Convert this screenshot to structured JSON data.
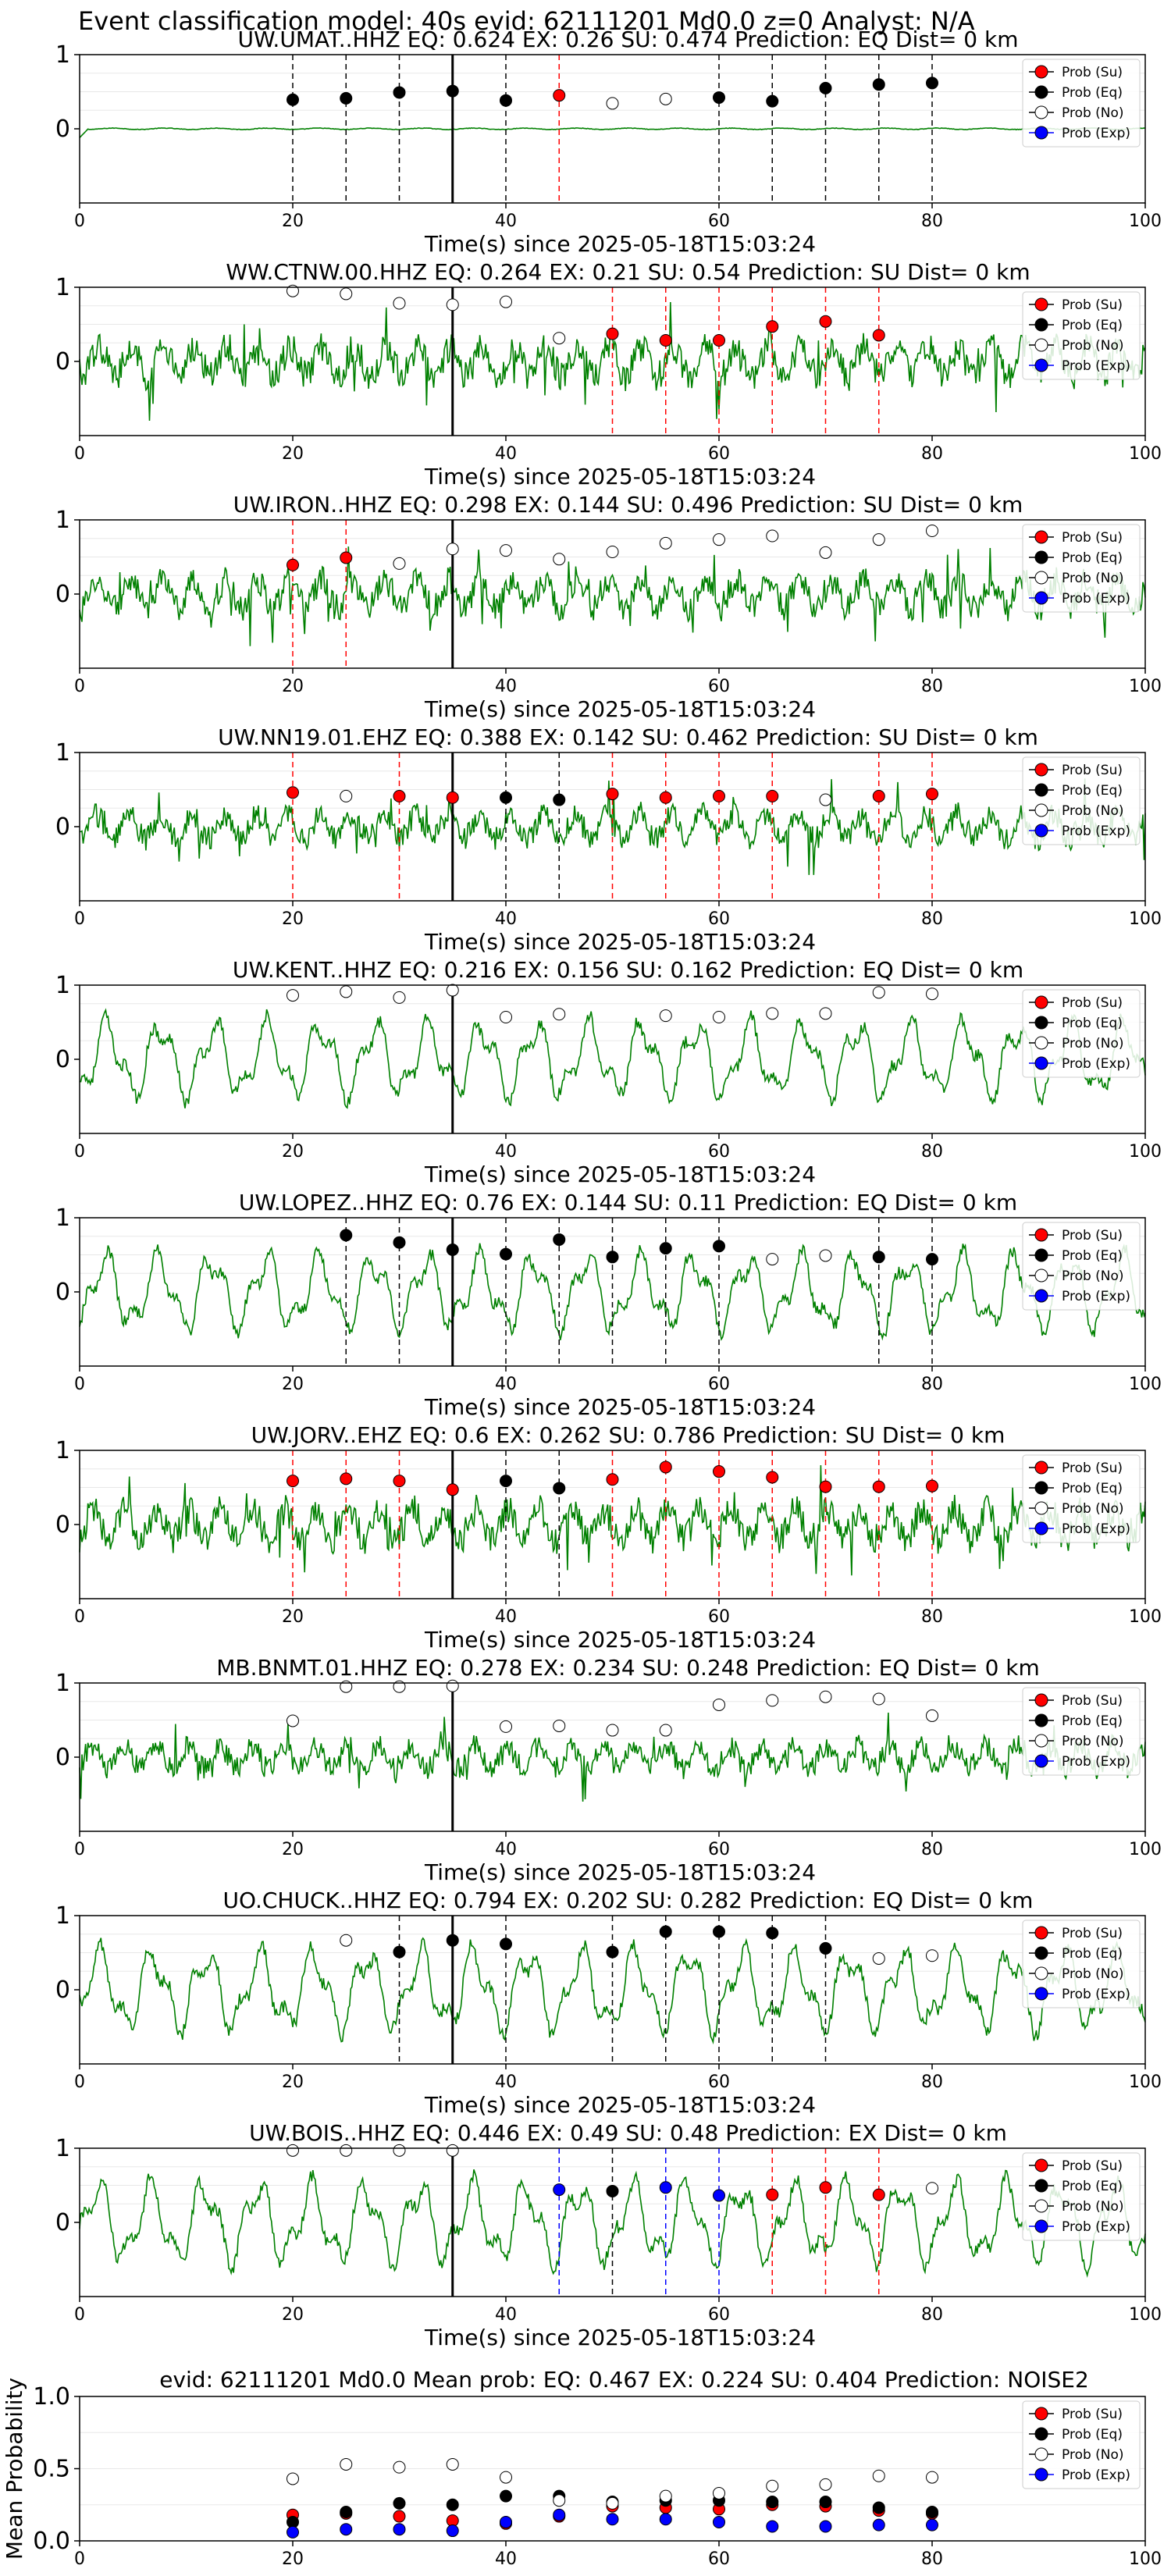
{
  "figure": {
    "suptitle": "Event classification model: 40s evid: 62111201 Md0.0 z=0 Analyst: N/A",
    "xlabel": "Time(s) since 2025-05-18T15:03:24",
    "xticks": [
      "0",
      "20",
      "40",
      "60",
      "80",
      "100"
    ],
    "yticks_trace": [
      "1",
      "0"
    ],
    "yticks_mean": [
      "1.0",
      "0.5",
      "0.0"
    ],
    "mean_ylabel": "Mean Probability",
    "legend": [
      "Prob (Su)",
      "Prob (Eq)",
      "Prob (No)",
      "Prob (Exp)"
    ],
    "colors": {
      "trace": "#008000",
      "su": "#ff0000",
      "eq": "#000000",
      "no": "#ffffff",
      "exp": "#0000ff",
      "origin_line": "#000000"
    }
  },
  "chart_data": [
    {
      "type": "line",
      "title": "UW.UMAT..HHZ   EQ: 0.624  EX: 0.26  SU: 0.474   Prediction: EQ    Dist= 0 km",
      "xlim": [
        0,
        100
      ],
      "amplitude": 0.15,
      "style": "noise",
      "origin_time": 35,
      "windows": [
        {
          "x": 20,
          "p": 0.4,
          "c": "eq",
          "line": "eq"
        },
        {
          "x": 25,
          "p": 0.42,
          "c": "eq",
          "line": "eq"
        },
        {
          "x": 30,
          "p": 0.5,
          "c": "eq",
          "line": "eq"
        },
        {
          "x": 35,
          "p": 0.52,
          "c": "eq",
          "line": null
        },
        {
          "x": 40,
          "p": 0.39,
          "c": "eq",
          "line": "eq"
        },
        {
          "x": 45,
          "p": 0.46,
          "c": "su",
          "line": "su"
        },
        {
          "x": 50,
          "p": 0.35,
          "c": "no",
          "line": null
        },
        {
          "x": 55,
          "p": 0.41,
          "c": "no",
          "line": null
        },
        {
          "x": 60,
          "p": 0.43,
          "c": "eq",
          "line": "eq"
        },
        {
          "x": 65,
          "p": 0.38,
          "c": "eq",
          "line": "eq"
        },
        {
          "x": 70,
          "p": 0.56,
          "c": "eq",
          "line": "eq"
        },
        {
          "x": 75,
          "p": 0.61,
          "c": "eq",
          "line": "eq"
        },
        {
          "x": 80,
          "p": 0.63,
          "c": "eq",
          "line": "eq"
        }
      ]
    },
    {
      "type": "line",
      "title": "WW.CTNW.00.HHZ   EQ: 0.264  EX: 0.21  SU: 0.54   Prediction: SU    Dist= 0 km",
      "xlim": [
        0,
        100
      ],
      "amplitude": 0.8,
      "style": "spiky",
      "origin_time": 35,
      "windows": [
        {
          "x": 20,
          "p": 0.97,
          "c": "no",
          "line": null
        },
        {
          "x": 25,
          "p": 0.93,
          "c": "no",
          "line": null
        },
        {
          "x": 30,
          "p": 0.8,
          "c": "no",
          "line": null
        },
        {
          "x": 35,
          "p": 0.78,
          "c": "no",
          "line": null
        },
        {
          "x": 40,
          "p": 0.82,
          "c": "no",
          "line": null
        },
        {
          "x": 45,
          "p": 0.32,
          "c": "no",
          "line": null
        },
        {
          "x": 50,
          "p": 0.38,
          "c": "su",
          "line": "su"
        },
        {
          "x": 55,
          "p": 0.29,
          "c": "su",
          "line": "su"
        },
        {
          "x": 60,
          "p": 0.29,
          "c": "su",
          "line": "su"
        },
        {
          "x": 65,
          "p": 0.48,
          "c": "su",
          "line": "su"
        },
        {
          "x": 70,
          "p": 0.55,
          "c": "su",
          "line": "su"
        },
        {
          "x": 75,
          "p": 0.36,
          "c": "su",
          "line": "su"
        }
      ]
    },
    {
      "type": "line",
      "title": "UW.IRON..HHZ   EQ: 0.298  EX: 0.144  SU: 0.496   Prediction: SU    Dist= 0 km",
      "xlim": [
        0,
        100
      ],
      "amplitude": 0.75,
      "style": "spiky",
      "origin_time": 35,
      "windows": [
        {
          "x": 20,
          "p": 0.4,
          "c": "su",
          "line": "su"
        },
        {
          "x": 25,
          "p": 0.5,
          "c": "su",
          "line": "su"
        },
        {
          "x": 30,
          "p": 0.42,
          "c": "no",
          "line": null
        },
        {
          "x": 35,
          "p": 0.62,
          "c": "no",
          "line": null
        },
        {
          "x": 40,
          "p": 0.6,
          "c": "no",
          "line": null
        },
        {
          "x": 45,
          "p": 0.48,
          "c": "no",
          "line": null
        },
        {
          "x": 50,
          "p": 0.58,
          "c": "no",
          "line": null
        },
        {
          "x": 55,
          "p": 0.7,
          "c": "no",
          "line": null
        },
        {
          "x": 60,
          "p": 0.75,
          "c": "no",
          "line": null
        },
        {
          "x": 65,
          "p": 0.8,
          "c": "no",
          "line": null
        },
        {
          "x": 70,
          "p": 0.57,
          "c": "no",
          "line": null
        },
        {
          "x": 75,
          "p": 0.75,
          "c": "no",
          "line": null
        },
        {
          "x": 80,
          "p": 0.87,
          "c": "no",
          "line": null
        }
      ]
    },
    {
      "type": "line",
      "title": "UW.NN19.01.EHZ   EQ: 0.388  EX: 0.142  SU: 0.462   Prediction: SU    Dist= 0 km",
      "xlim": [
        0,
        100
      ],
      "amplitude": 0.65,
      "style": "spiky",
      "origin_time": 35,
      "windows": [
        {
          "x": 20,
          "p": 0.47,
          "c": "su",
          "line": "su"
        },
        {
          "x": 25,
          "p": 0.42,
          "c": "no",
          "line": null
        },
        {
          "x": 30,
          "p": 0.42,
          "c": "su",
          "line": "su"
        },
        {
          "x": 35,
          "p": 0.4,
          "c": "su",
          "line": null
        },
        {
          "x": 40,
          "p": 0.4,
          "c": "eq",
          "line": "eq"
        },
        {
          "x": 45,
          "p": 0.37,
          "c": "eq",
          "line": "eq"
        },
        {
          "x": 50,
          "p": 0.45,
          "c": "su",
          "line": "su"
        },
        {
          "x": 55,
          "p": 0.4,
          "c": "su",
          "line": "su"
        },
        {
          "x": 60,
          "p": 0.42,
          "c": "su",
          "line": "su"
        },
        {
          "x": 65,
          "p": 0.42,
          "c": "su",
          "line": "su"
        },
        {
          "x": 70,
          "p": 0.37,
          "c": "no",
          "line": null
        },
        {
          "x": 75,
          "p": 0.42,
          "c": "su",
          "line": "su"
        },
        {
          "x": 80,
          "p": 0.45,
          "c": "su",
          "line": "su"
        }
      ]
    },
    {
      "type": "line",
      "title": "UW.KENT..HHZ   EQ: 0.216  EX: 0.156  SU: 0.162   Prediction: EQ    Dist= 0 km",
      "xlim": [
        0,
        100
      ],
      "amplitude": 0.75,
      "style": "smooth",
      "origin_time": 35,
      "windows": [
        {
          "x": 20,
          "p": 0.88,
          "c": "no",
          "line": null
        },
        {
          "x": 25,
          "p": 0.93,
          "c": "no",
          "line": null
        },
        {
          "x": 30,
          "p": 0.85,
          "c": "no",
          "line": null
        },
        {
          "x": 35,
          "p": 0.95,
          "c": "no",
          "line": null
        },
        {
          "x": 40,
          "p": 0.58,
          "c": "no",
          "line": null
        },
        {
          "x": 45,
          "p": 0.62,
          "c": "no",
          "line": null
        },
        {
          "x": 55,
          "p": 0.6,
          "c": "no",
          "line": null
        },
        {
          "x": 60,
          "p": 0.58,
          "c": "no",
          "line": null
        },
        {
          "x": 65,
          "p": 0.63,
          "c": "no",
          "line": null
        },
        {
          "x": 70,
          "p": 0.63,
          "c": "no",
          "line": null
        },
        {
          "x": 75,
          "p": 0.92,
          "c": "no",
          "line": null
        },
        {
          "x": 80,
          "p": 0.9,
          "c": "no",
          "line": null
        }
      ]
    },
    {
      "type": "line",
      "title": "UW.LOPEZ..HHZ   EQ: 0.76  EX: 0.144  SU: 0.11   Prediction: EQ    Dist= 0 km",
      "xlim": [
        0,
        100
      ],
      "amplitude": 0.75,
      "style": "smooth",
      "origin_time": 35,
      "windows": [
        {
          "x": 25,
          "p": 0.78,
          "c": "eq",
          "line": "eq"
        },
        {
          "x": 30,
          "p": 0.68,
          "c": "eq",
          "line": "eq"
        },
        {
          "x": 35,
          "p": 0.58,
          "c": "eq",
          "line": null
        },
        {
          "x": 40,
          "p": 0.52,
          "c": "eq",
          "line": "eq"
        },
        {
          "x": 45,
          "p": 0.72,
          "c": "eq",
          "line": "eq"
        },
        {
          "x": 50,
          "p": 0.48,
          "c": "eq",
          "line": "eq"
        },
        {
          "x": 55,
          "p": 0.6,
          "c": "eq",
          "line": "eq"
        },
        {
          "x": 60,
          "p": 0.63,
          "c": "eq",
          "line": "eq"
        },
        {
          "x": 65,
          "p": 0.45,
          "c": "no",
          "line": null
        },
        {
          "x": 70,
          "p": 0.5,
          "c": "no",
          "line": null
        },
        {
          "x": 75,
          "p": 0.48,
          "c": "eq",
          "line": "eq"
        },
        {
          "x": 80,
          "p": 0.45,
          "c": "eq",
          "line": "eq"
        }
      ]
    },
    {
      "type": "line",
      "title": "UW.JORV..EHZ   EQ: 0.6  EX: 0.262  SU: 0.786   Prediction: SU    Dist= 0 km",
      "xlim": [
        0,
        100
      ],
      "amplitude": 0.8,
      "style": "spiky",
      "origin_time": 35,
      "windows": [
        {
          "x": 20,
          "p": 0.6,
          "c": "su",
          "line": "su"
        },
        {
          "x": 25,
          "p": 0.63,
          "c": "su",
          "line": "su"
        },
        {
          "x": 30,
          "p": 0.6,
          "c": "su",
          "line": "su"
        },
        {
          "x": 35,
          "p": 0.48,
          "c": "su",
          "line": null
        },
        {
          "x": 40,
          "p": 0.6,
          "c": "eq",
          "line": "eq"
        },
        {
          "x": 45,
          "p": 0.5,
          "c": "eq",
          "line": "eq"
        },
        {
          "x": 50,
          "p": 0.62,
          "c": "su",
          "line": "su"
        },
        {
          "x": 55,
          "p": 0.79,
          "c": "su",
          "line": "su"
        },
        {
          "x": 60,
          "p": 0.73,
          "c": "su",
          "line": "su"
        },
        {
          "x": 65,
          "p": 0.65,
          "c": "su",
          "line": "su"
        },
        {
          "x": 70,
          "p": 0.52,
          "c": "su",
          "line": "su"
        },
        {
          "x": 75,
          "p": 0.52,
          "c": "su",
          "line": "su"
        },
        {
          "x": 80,
          "p": 0.53,
          "c": "su",
          "line": "su"
        }
      ]
    },
    {
      "type": "line",
      "title": "MB.BNMT.01.HHZ   EQ: 0.278  EX: 0.234  SU: 0.248   Prediction: EQ    Dist= 0 km",
      "xlim": [
        0,
        100
      ],
      "amplitude": 0.6,
      "style": "spiky",
      "origin_time": 35,
      "windows": [
        {
          "x": 20,
          "p": 0.5,
          "c": "no",
          "line": null
        },
        {
          "x": 25,
          "p": 0.97,
          "c": "no",
          "line": null
        },
        {
          "x": 30,
          "p": 0.97,
          "c": "no",
          "line": null
        },
        {
          "x": 35,
          "p": 0.98,
          "c": "no",
          "line": null
        },
        {
          "x": 40,
          "p": 0.42,
          "c": "no",
          "line": null
        },
        {
          "x": 45,
          "p": 0.43,
          "c": "no",
          "line": null
        },
        {
          "x": 50,
          "p": 0.37,
          "c": "no",
          "line": null
        },
        {
          "x": 55,
          "p": 0.37,
          "c": "no",
          "line": null
        },
        {
          "x": 60,
          "p": 0.72,
          "c": "no",
          "line": null
        },
        {
          "x": 65,
          "p": 0.78,
          "c": "no",
          "line": null
        },
        {
          "x": 70,
          "p": 0.83,
          "c": "no",
          "line": null
        },
        {
          "x": 75,
          "p": 0.8,
          "c": "no",
          "line": null
        },
        {
          "x": 80,
          "p": 0.57,
          "c": "no",
          "line": null
        }
      ]
    },
    {
      "type": "line",
      "title": "UO.CHUCK..HHZ   EQ: 0.794  EX: 0.202  SU: 0.282   Prediction: EQ    Dist= 0 km",
      "xlim": [
        0,
        100
      ],
      "amplitude": 0.8,
      "style": "smooth",
      "origin_time": 35,
      "windows": [
        {
          "x": 25,
          "p": 0.68,
          "c": "no",
          "line": null
        },
        {
          "x": 30,
          "p": 0.52,
          "c": "eq",
          "line": "eq"
        },
        {
          "x": 35,
          "p": 0.68,
          "c": "eq",
          "line": null
        },
        {
          "x": 40,
          "p": 0.63,
          "c": "eq",
          "line": "eq"
        },
        {
          "x": 50,
          "p": 0.52,
          "c": "eq",
          "line": "eq"
        },
        {
          "x": 55,
          "p": 0.8,
          "c": "eq",
          "line": "eq"
        },
        {
          "x": 60,
          "p": 0.8,
          "c": "eq",
          "line": "eq"
        },
        {
          "x": 65,
          "p": 0.78,
          "c": "eq",
          "line": "eq"
        },
        {
          "x": 70,
          "p": 0.57,
          "c": "eq",
          "line": "eq"
        },
        {
          "x": 75,
          "p": 0.43,
          "c": "no",
          "line": null
        },
        {
          "x": 80,
          "p": 0.47,
          "c": "no",
          "line": null
        }
      ]
    },
    {
      "type": "line",
      "title": "UW.BOIS..HHZ   EQ: 0.446  EX: 0.49  SU: 0.48   Prediction: EX    Dist= 0 km",
      "xlim": [
        0,
        100
      ],
      "amplitude": 0.8,
      "style": "smooth",
      "origin_time": 35,
      "windows": [
        {
          "x": 20,
          "p": 0.99,
          "c": "no",
          "line": null
        },
        {
          "x": 25,
          "p": 0.99,
          "c": "no",
          "line": null
        },
        {
          "x": 30,
          "p": 0.99,
          "c": "no",
          "line": null
        },
        {
          "x": 35,
          "p": 0.99,
          "c": "no",
          "line": null
        },
        {
          "x": 45,
          "p": 0.45,
          "c": "exp",
          "line": "exp"
        },
        {
          "x": 50,
          "p": 0.43,
          "c": "eq",
          "line": "eq"
        },
        {
          "x": 55,
          "p": 0.48,
          "c": "exp",
          "line": "exp"
        },
        {
          "x": 60,
          "p": 0.37,
          "c": "exp",
          "line": "exp"
        },
        {
          "x": 65,
          "p": 0.38,
          "c": "su",
          "line": "su"
        },
        {
          "x": 70,
          "p": 0.48,
          "c": "su",
          "line": "su"
        },
        {
          "x": 75,
          "p": 0.38,
          "c": "su",
          "line": "su"
        },
        {
          "x": 80,
          "p": 0.47,
          "c": "no",
          "line": null
        }
      ]
    },
    {
      "type": "scatter",
      "title": "evid: 62111201  Md0.0   Mean prob:   EQ: 0.467  EX: 0.224  SU: 0.404   Prediction: NOISE2",
      "xlim": [
        0,
        100
      ],
      "ylim": [
        0,
        1
      ],
      "ylabel": "Mean Probability",
      "x": [
        20,
        25,
        30,
        35,
        40,
        45,
        50,
        55,
        60,
        65,
        70,
        75,
        80
      ],
      "series": [
        {
          "name": "Prob (Su)",
          "color": "su",
          "values": [
            0.18,
            0.19,
            0.17,
            0.14,
            0.12,
            0.17,
            0.24,
            0.23,
            0.22,
            0.25,
            0.24,
            0.21,
            0.19
          ]
        },
        {
          "name": "Prob (Eq)",
          "color": "eq",
          "values": [
            0.13,
            0.2,
            0.26,
            0.25,
            0.31,
            0.31,
            0.27,
            0.28,
            0.28,
            0.27,
            0.27,
            0.23,
            0.2
          ]
        },
        {
          "name": "Prob (No)",
          "color": "no",
          "values": [
            0.43,
            0.53,
            0.51,
            0.53,
            0.44,
            0.28,
            0.26,
            0.31,
            0.33,
            0.38,
            0.39,
            0.45,
            0.44
          ]
        },
        {
          "name": "Prob (Exp)",
          "color": "exp",
          "values": [
            0.06,
            0.08,
            0.08,
            0.07,
            0.13,
            0.18,
            0.15,
            0.15,
            0.13,
            0.1,
            0.1,
            0.11,
            0.11
          ]
        }
      ]
    }
  ]
}
